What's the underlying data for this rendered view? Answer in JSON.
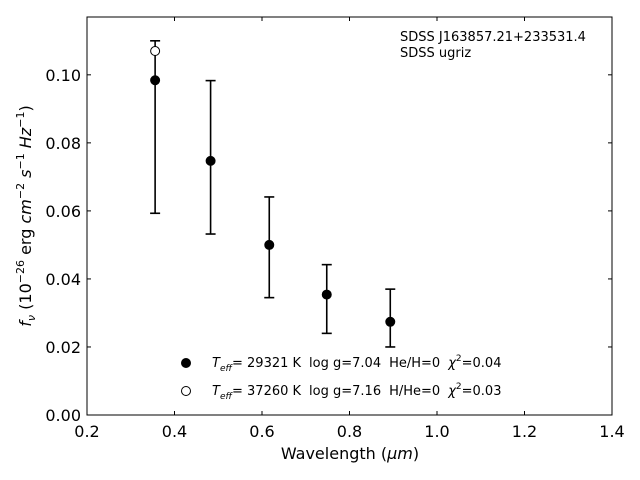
{
  "chart_data": {
    "type": "scatter",
    "xlabel_main": "Wavelength (",
    "xlabel_unit": "μm",
    "xlabel_close": ")",
    "ylabel": {
      "f": "f",
      "nu": "ν",
      "open": " (10",
      "exp": "−26",
      "erg": " erg ",
      "cm": "cm",
      "cm_exp": "−2",
      "s": " s",
      "s_exp": "−1",
      "hz": " Hz",
      "hz_exp": "−1",
      "close": ")"
    },
    "xlim": [
      0.2,
      1.4
    ],
    "ylim": [
      0.0,
      0.117
    ],
    "xticks": [
      0.2,
      0.4,
      0.6,
      0.8,
      1.0,
      1.2,
      1.4
    ],
    "xtick_labels": [
      "0.2",
      "0.4",
      "0.6",
      "0.8",
      "1.0",
      "1.2",
      "1.4"
    ],
    "yticks": [
      0.0,
      0.02,
      0.04,
      0.06,
      0.08,
      0.1
    ],
    "ytick_labels": [
      "0.00",
      "0.02",
      "0.04",
      "0.06",
      "0.08",
      "0.10"
    ],
    "annotation_lines": [
      "SDSS J163857.21+233531.4",
      "SDSS ugriz"
    ],
    "grid": false,
    "legend_placement": "lower-center",
    "series": [
      {
        "marker": "filled-circle",
        "x": [
          0.3557,
          0.4825,
          0.6166,
          0.748,
          0.8932
        ],
        "y": [
          0.0984,
          0.0747,
          0.05,
          0.0354,
          0.0274
        ],
        "yerr_low": [
          0.0593,
          0.0532,
          0.0345,
          0.024,
          0.02
        ],
        "yerr_high": [
          0.11,
          0.0983,
          0.0641,
          0.0442,
          0.037
        ],
        "legend": {
          "t": "T",
          "t_sub": "eff",
          "t_val": "= 29321 K",
          "logg": "log g=7.04",
          "comp": "He/H=0",
          "chi": "χ",
          "chi_exp": "2",
          "chi_val": "=0.04"
        }
      },
      {
        "marker": "open-circle",
        "x": [
          0.3557
        ],
        "y": [
          0.107
        ],
        "legend": {
          "t": "T",
          "t_sub": "eff",
          "t_val": "= 37260 K",
          "logg": "log g=7.16",
          "comp": "H/He=0",
          "chi": "χ",
          "chi_exp": "2",
          "chi_val": "=0.03"
        }
      }
    ],
    "colors": {
      "marker": "#000000",
      "axes": "#000000",
      "background": "#ffffff"
    }
  }
}
